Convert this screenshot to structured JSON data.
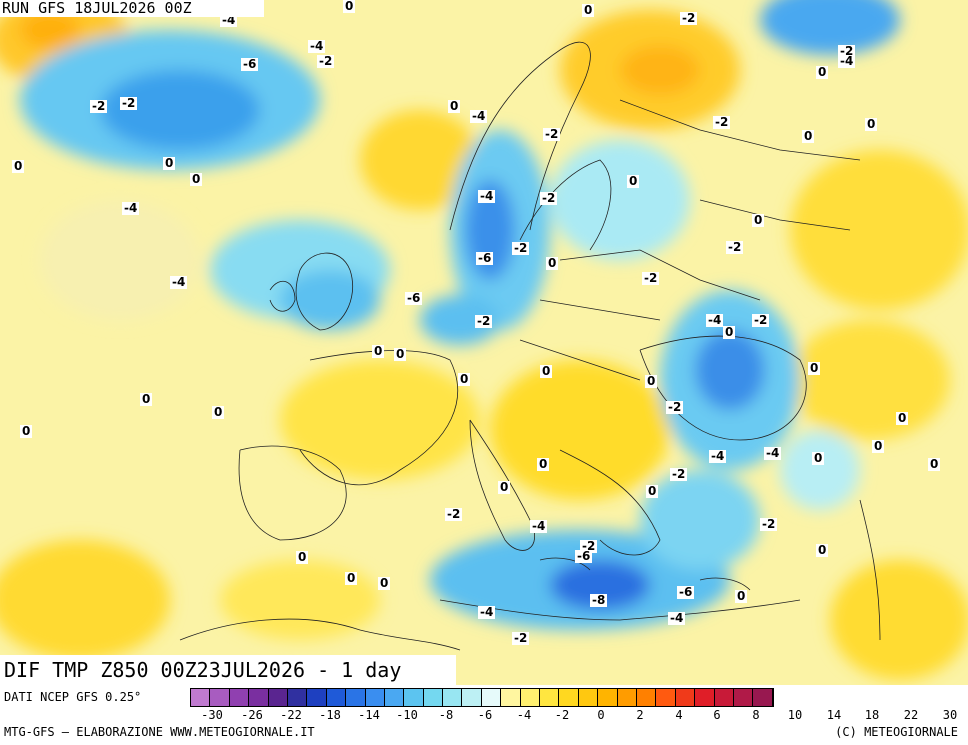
{
  "header": {
    "run_label": "RUN GFS 18JUL2026 00Z"
  },
  "title": "DIF TMP Z850 00Z23JUL2026 - 1 day",
  "footer": {
    "data_source": "DATI NCEP GFS 0.25°",
    "elaboration": "MTG-GFS – ELABORAZIONE WWW.METEOGIORNALE.IT",
    "copyright": "(C) METEOGIORNALE"
  },
  "colorbar": {
    "colors": [
      "#c07ad0",
      "#a85cc0",
      "#9040b0",
      "#7a2fa0",
      "#5a2590",
      "#3030a0",
      "#1e40c0",
      "#1f5ad8",
      "#2a74e6",
      "#3a8ef0",
      "#4aa8f2",
      "#5cc4f0",
      "#74d8f0",
      "#98e6f2",
      "#bdf0f4",
      "#e6fafa",
      "#fff6a0",
      "#fff070",
      "#ffe640",
      "#ffd820",
      "#ffc810",
      "#ffb400",
      "#ff9c00",
      "#ff8000",
      "#ff5a10",
      "#f03a1a",
      "#e01e28",
      "#c81a38",
      "#b01a48",
      "#981850"
    ],
    "tick_labels": [
      "-30",
      "-26",
      "-22",
      "-18",
      "-14",
      "-10",
      "-8",
      "-6",
      "-4",
      "-2",
      "0",
      "2",
      "4",
      "6",
      "8",
      "10",
      "14",
      "18",
      "22",
      "30"
    ]
  },
  "contour_labels": [
    {
      "v": "-4"
    },
    {
      "v": "0"
    },
    {
      "v": "0"
    },
    {
      "v": "-4"
    },
    {
      "v": "-2"
    },
    {
      "v": "-6"
    },
    {
      "v": "-2"
    },
    {
      "v": "-2"
    },
    {
      "v": "-4"
    },
    {
      "v": "0"
    },
    {
      "v": "-2"
    },
    {
      "v": "-2"
    },
    {
      "v": "0"
    },
    {
      "v": "-4"
    },
    {
      "v": "-2"
    },
    {
      "v": "-2"
    },
    {
      "v": "0"
    },
    {
      "v": "0"
    },
    {
      "v": "0"
    },
    {
      "v": "0"
    },
    {
      "v": "0"
    },
    {
      "v": "-4"
    },
    {
      "v": "0"
    },
    {
      "v": "-2"
    },
    {
      "v": "-4"
    },
    {
      "v": "-6"
    },
    {
      "v": "-2"
    },
    {
      "v": "0"
    },
    {
      "v": "-2"
    },
    {
      "v": "0"
    },
    {
      "v": "-4"
    },
    {
      "v": "-6"
    },
    {
      "v": "-2"
    },
    {
      "v": "-4"
    },
    {
      "v": "0"
    },
    {
      "v": "-2"
    },
    {
      "v": "0"
    },
    {
      "v": "0"
    },
    {
      "v": "-2"
    },
    {
      "v": "0"
    },
    {
      "v": "0"
    },
    {
      "v": "0"
    },
    {
      "v": "-2"
    },
    {
      "v": "-4"
    },
    {
      "v": "-4"
    },
    {
      "v": "0"
    },
    {
      "v": "-2"
    },
    {
      "v": "0"
    },
    {
      "v": "0"
    },
    {
      "v": "0"
    },
    {
      "v": "0"
    },
    {
      "v": "-4"
    },
    {
      "v": "-2"
    },
    {
      "v": "0"
    },
    {
      "v": "-2"
    },
    {
      "v": "-6"
    },
    {
      "v": "-2"
    },
    {
      "v": "-8"
    },
    {
      "v": "-6"
    },
    {
      "v": "-4"
    },
    {
      "v": "-2"
    },
    {
      "v": "-4"
    },
    {
      "v": "0"
    },
    {
      "v": "0"
    },
    {
      "v": "0"
    },
    {
      "v": "0"
    },
    {
      "v": "0"
    },
    {
      "v": "0"
    },
    {
      "v": "0"
    },
    {
      "v": "0"
    },
    {
      "v": "0"
    },
    {
      "v": "0"
    }
  ]
}
